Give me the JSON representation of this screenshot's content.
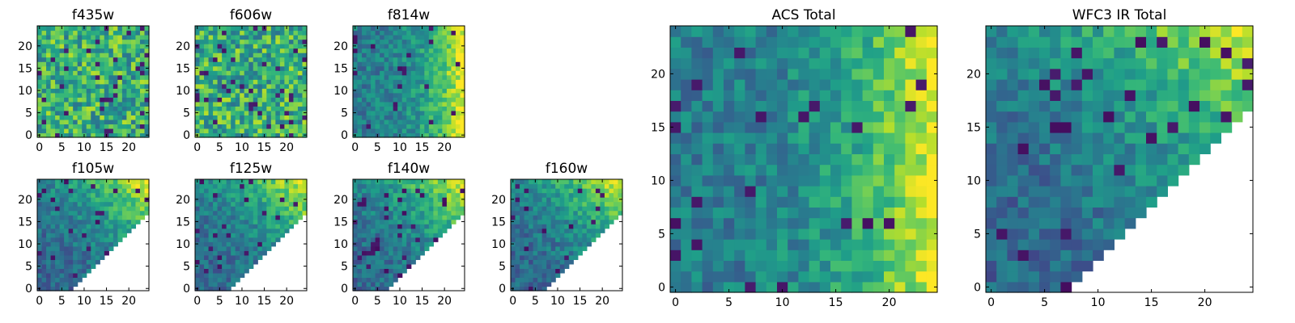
{
  "chart_data": [
    {
      "type": "heatmap",
      "title": "f435w",
      "grid_size": 25,
      "mask": "none",
      "pattern": "noisy_uniform",
      "colormap": "viridis",
      "xticks": [
        0,
        5,
        10,
        15,
        20
      ],
      "yticks": [
        0,
        5,
        10,
        15,
        20
      ],
      "xlim": [
        0,
        25
      ],
      "ylim": [
        0,
        25
      ]
    },
    {
      "type": "heatmap",
      "title": "f606w",
      "grid_size": 25,
      "mask": "none",
      "pattern": "noisy_uniform",
      "colormap": "viridis",
      "xticks": [
        0,
        5,
        10,
        15,
        20
      ],
      "yticks": [
        0,
        5,
        10,
        15,
        20
      ],
      "xlim": [
        0,
        25
      ],
      "ylim": [
        0,
        25
      ]
    },
    {
      "type": "heatmap",
      "title": "f814w",
      "grid_size": 25,
      "mask": "none",
      "pattern": "gradient_right",
      "colormap": "viridis",
      "xticks": [
        0,
        5,
        10,
        15,
        20
      ],
      "yticks": [
        0,
        5,
        10,
        15,
        20
      ],
      "xlim": [
        0,
        25
      ],
      "ylim": [
        0,
        25
      ]
    },
    {
      "type": "heatmap",
      "title": "f105w",
      "grid_size": 25,
      "mask": "lower_right_triangle",
      "pattern": "gradient_upper_right",
      "colormap": "viridis",
      "xticks": [
        0,
        5,
        10,
        15,
        20
      ],
      "yticks": [
        0,
        5,
        10,
        15,
        20
      ],
      "xlim": [
        0,
        25
      ],
      "ylim": [
        0,
        25
      ]
    },
    {
      "type": "heatmap",
      "title": "f125w",
      "grid_size": 25,
      "mask": "lower_right_triangle",
      "pattern": "gradient_upper_right",
      "colormap": "viridis",
      "xticks": [
        0,
        5,
        10,
        15,
        20
      ],
      "yticks": [
        0,
        5,
        10,
        15,
        20
      ],
      "xlim": [
        0,
        25
      ],
      "ylim": [
        0,
        25
      ]
    },
    {
      "type": "heatmap",
      "title": "f140w",
      "grid_size": 25,
      "mask": "lower_right_triangle",
      "pattern": "gradient_upper_right",
      "colormap": "viridis",
      "xticks": [
        0,
        5,
        10,
        15,
        20
      ],
      "yticks": [
        0,
        5,
        10,
        15,
        20
      ],
      "xlim": [
        0,
        25
      ],
      "ylim": [
        0,
        25
      ]
    },
    {
      "type": "heatmap",
      "title": "f160w",
      "grid_size": 25,
      "mask": "lower_right_triangle",
      "pattern": "gradient_upper_right",
      "colormap": "viridis",
      "xticks": [
        0,
        5,
        10,
        15,
        20
      ],
      "yticks": [
        0,
        5,
        10,
        15,
        20
      ],
      "xlim": [
        0,
        25
      ],
      "ylim": [
        0,
        25
      ]
    },
    {
      "type": "heatmap",
      "title": "ACS Total",
      "grid_size": 25,
      "mask": "none",
      "pattern": "gradient_right",
      "colormap": "viridis",
      "xticks": [
        0,
        5,
        10,
        15,
        20
      ],
      "yticks": [
        0,
        5,
        10,
        15,
        20
      ],
      "xlim": [
        0,
        25
      ],
      "ylim": [
        0,
        25
      ]
    },
    {
      "type": "heatmap",
      "title": "WFC3 IR Total",
      "grid_size": 25,
      "mask": "lower_right_triangle",
      "pattern": "gradient_upper_right",
      "colormap": "viridis",
      "xticks": [
        0,
        5,
        10,
        15,
        20
      ],
      "yticks": [
        0,
        5,
        10,
        15,
        20
      ],
      "xlim": [
        0,
        25
      ],
      "ylim": [
        0,
        25
      ]
    }
  ]
}
